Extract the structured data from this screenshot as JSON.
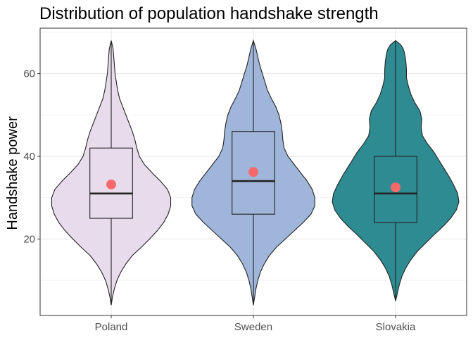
{
  "chart_data": {
    "type": "violin",
    "title": "Distribution of population handshake strength",
    "xlabel": "",
    "ylabel": "Handshake power",
    "categories": [
      "Poland",
      "Sweden",
      "Slovakia"
    ],
    "ylim": [
      1.5,
      71
    ],
    "yticks": [
      20,
      40,
      60
    ],
    "grid": true,
    "legend": "none",
    "series": [
      {
        "category": "Poland",
        "color": "#e8dcec",
        "min": 4,
        "q1": 25,
        "median": 31,
        "q3": 42,
        "max": 68,
        "mean": 33.2,
        "density": [
          [
            4,
            0.0
          ],
          [
            6,
            0.02
          ],
          [
            8,
            0.05
          ],
          [
            10,
            0.09
          ],
          [
            12,
            0.15
          ],
          [
            14,
            0.23
          ],
          [
            16,
            0.33
          ],
          [
            18,
            0.47
          ],
          [
            20,
            0.6
          ],
          [
            22,
            0.72
          ],
          [
            24,
            0.82
          ],
          [
            26,
            0.89
          ],
          [
            28,
            0.93
          ],
          [
            30,
            0.93
          ],
          [
            32,
            0.88
          ],
          [
            34,
            0.77
          ],
          [
            36,
            0.64
          ],
          [
            38,
            0.52
          ],
          [
            40,
            0.44
          ],
          [
            42,
            0.4
          ],
          [
            44,
            0.37
          ],
          [
            46,
            0.33
          ],
          [
            48,
            0.28
          ],
          [
            50,
            0.23
          ],
          [
            52,
            0.18
          ],
          [
            54,
            0.13
          ],
          [
            56,
            0.1
          ],
          [
            58,
            0.08
          ],
          [
            60,
            0.06
          ],
          [
            62,
            0.05
          ],
          [
            64,
            0.04
          ],
          [
            66,
            0.03
          ],
          [
            68,
            0.0
          ]
        ]
      },
      {
        "category": "Sweden",
        "color": "#9fb5d9",
        "min": 4,
        "q1": 26,
        "median": 34,
        "q3": 46,
        "max": 68,
        "mean": 36.2,
        "density": [
          [
            4,
            0.0
          ],
          [
            6,
            0.02
          ],
          [
            8,
            0.04
          ],
          [
            10,
            0.07
          ],
          [
            12,
            0.11
          ],
          [
            14,
            0.17
          ],
          [
            16,
            0.25
          ],
          [
            18,
            0.36
          ],
          [
            20,
            0.5
          ],
          [
            22,
            0.64
          ],
          [
            24,
            0.78
          ],
          [
            26,
            0.9
          ],
          [
            28,
            0.96
          ],
          [
            30,
            0.96
          ],
          [
            32,
            0.92
          ],
          [
            34,
            0.84
          ],
          [
            36,
            0.74
          ],
          [
            38,
            0.64
          ],
          [
            40,
            0.54
          ],
          [
            42,
            0.48
          ],
          [
            44,
            0.46
          ],
          [
            46,
            0.45
          ],
          [
            48,
            0.43
          ],
          [
            50,
            0.4
          ],
          [
            52,
            0.35
          ],
          [
            54,
            0.28
          ],
          [
            56,
            0.22
          ],
          [
            58,
            0.18
          ],
          [
            60,
            0.14
          ],
          [
            62,
            0.1
          ],
          [
            64,
            0.07
          ],
          [
            66,
            0.04
          ],
          [
            68,
            0.0
          ]
        ]
      },
      {
        "category": "Slovakia",
        "color": "#2e8b91",
        "min": 5,
        "q1": 24,
        "median": 31,
        "q3": 40,
        "max": 68,
        "mean": 32.5,
        "density": [
          [
            5,
            0.0
          ],
          [
            7,
            0.03
          ],
          [
            9,
            0.06
          ],
          [
            11,
            0.1
          ],
          [
            13,
            0.16
          ],
          [
            15,
            0.24
          ],
          [
            17,
            0.34
          ],
          [
            19,
            0.47
          ],
          [
            21,
            0.6
          ],
          [
            23,
            0.74
          ],
          [
            25,
            0.86
          ],
          [
            27,
            0.95
          ],
          [
            29,
            0.99
          ],
          [
            31,
            0.97
          ],
          [
            33,
            0.91
          ],
          [
            35,
            0.84
          ],
          [
            37,
            0.76
          ],
          [
            39,
            0.68
          ],
          [
            41,
            0.6
          ],
          [
            43,
            0.5
          ],
          [
            45,
            0.42
          ],
          [
            47,
            0.4
          ],
          [
            49,
            0.41
          ],
          [
            51,
            0.38
          ],
          [
            53,
            0.3
          ],
          [
            55,
            0.24
          ],
          [
            57,
            0.2
          ],
          [
            59,
            0.17
          ],
          [
            61,
            0.17
          ],
          [
            63,
            0.16
          ],
          [
            65,
            0.14
          ],
          [
            66,
            0.12
          ],
          [
            67,
            0.08
          ],
          [
            68,
            0.0
          ]
        ]
      }
    ]
  }
}
